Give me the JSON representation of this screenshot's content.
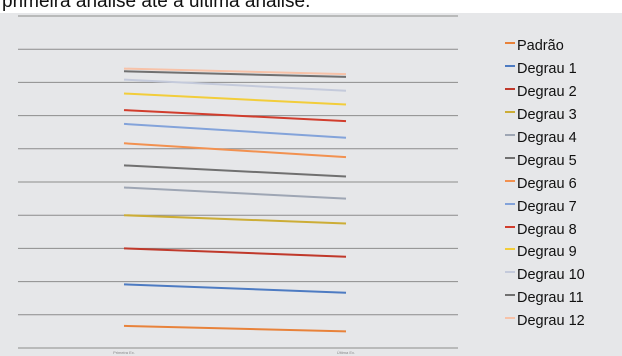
{
  "caption": "primeira análise até a última análise.",
  "chart_data": {
    "type": "line",
    "categories": [
      "Primeira Ex.",
      "Última Ex."
    ],
    "title": "",
    "xlabel": "",
    "ylabel": "",
    "ylim": [
      0,
      12
    ],
    "grid": true,
    "legend_position": "right",
    "series": [
      {
        "name": "Padrão",
        "color": "#e8823a",
        "values": [
          0.8,
          0.6
        ]
      },
      {
        "name": "Degrau 1",
        "color": "#4d7bc2",
        "values": [
          2.3,
          2.0
        ]
      },
      {
        "name": "Degrau 2",
        "color": "#c0392b",
        "values": [
          3.6,
          3.3
        ]
      },
      {
        "name": "Degrau 3",
        "color": "#ccad36",
        "values": [
          4.8,
          4.5
        ]
      },
      {
        "name": "Degrau 4",
        "color": "#9ea6b4",
        "values": [
          5.8,
          5.4
        ]
      },
      {
        "name": "Degrau 5",
        "color": "#707070",
        "values": [
          6.6,
          6.2
        ]
      },
      {
        "name": "Degrau 6",
        "color": "#f29150",
        "values": [
          7.4,
          6.9
        ]
      },
      {
        "name": "Degrau 7",
        "color": "#83a3da",
        "values": [
          8.1,
          7.6
        ]
      },
      {
        "name": "Degrau 8",
        "color": "#d13d2d",
        "values": [
          8.6,
          8.2
        ]
      },
      {
        "name": "Degrau 9",
        "color": "#f2cd3a",
        "values": [
          9.2,
          8.8
        ]
      },
      {
        "name": "Degrau 10",
        "color": "#c4cadb",
        "values": [
          9.7,
          9.3
        ]
      },
      {
        "name": "Degrau 11",
        "color": "#707070",
        "values": [
          10.0,
          9.8
        ]
      },
      {
        "name": "Degrau 12",
        "color": "#f7c2a8",
        "values": [
          10.1,
          9.9
        ]
      }
    ]
  }
}
